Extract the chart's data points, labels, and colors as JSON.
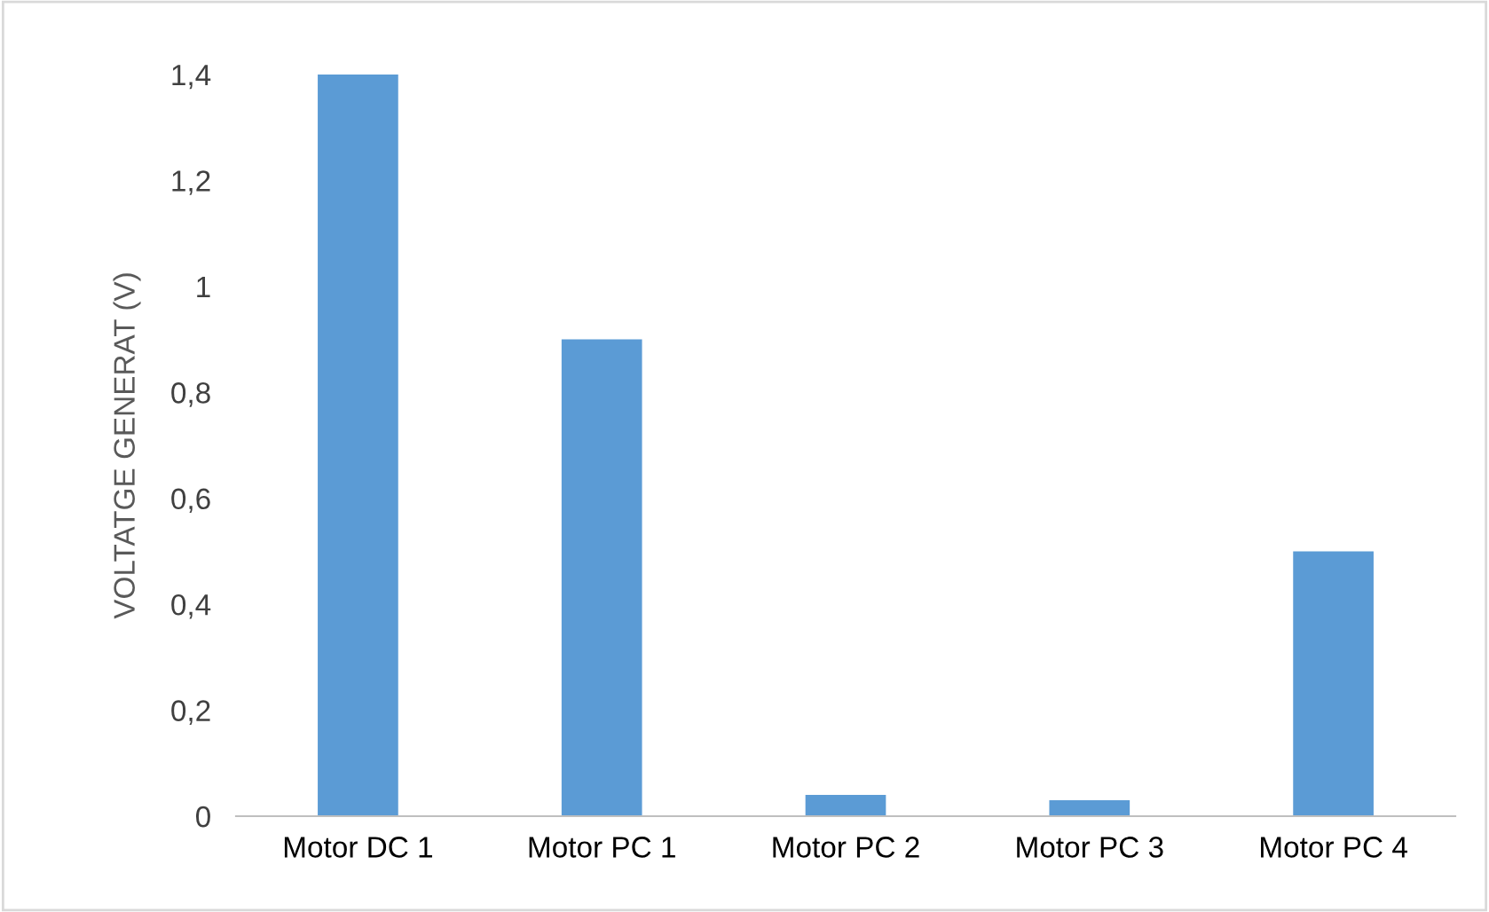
{
  "chart_data": {
    "type": "bar",
    "ylabel": "VOLTATGE GENERAT (V)",
    "categories": [
      "Motor DC 1",
      "Motor PC 1",
      "Motor PC 2",
      "Motor PC 3",
      "Motor PC 4"
    ],
    "values": [
      1.4,
      0.9,
      0.04,
      0.03,
      0.5
    ],
    "color": "#5b9bd5",
    "ylim": [
      0,
      1.4
    ],
    "yticks": [
      0,
      {
        "value": 0.2,
        "label": "0,2"
      },
      {
        "value": 0.4,
        "label": "0,4"
      },
      {
        "value": 0.6,
        "label": "0,6"
      },
      {
        "value": 0.8,
        "label": "0,8"
      },
      1,
      {
        "value": 1.2,
        "label": "1,2"
      },
      {
        "value": 1.4,
        "label": "1,4"
      }
    ],
    "grid": false
  }
}
